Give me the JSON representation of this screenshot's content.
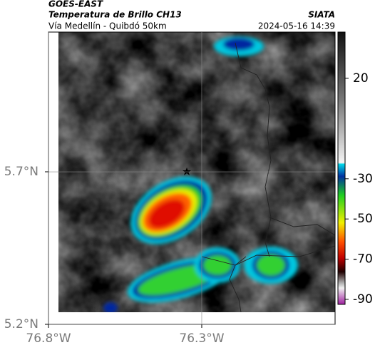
{
  "header": {
    "title": "GOES-EAST",
    "subtitle": "Temperatura de Brillo CH13",
    "source": "SIATA",
    "route": "Vía Medellín - Quibdó 50km",
    "timestamp": "2024-05-16 14:39"
  },
  "map": {
    "xlim": [
      -76.8,
      -75.865
    ],
    "ylim": [
      5.2,
      6.158
    ],
    "xticks": [
      {
        "value": -76.8,
        "label": "76.8°W"
      },
      {
        "value": -76.3,
        "label": "76.3°W"
      }
    ],
    "yticks": [
      {
        "value": 5.2,
        "label": "5.2°N"
      },
      {
        "value": 5.7,
        "label": "5.7°N"
      }
    ]
  },
  "colorbar": {
    "clim": [
      -92.5,
      43
    ],
    "ticks": [
      20,
      -30,
      -50,
      -70,
      -90
    ]
  }
}
